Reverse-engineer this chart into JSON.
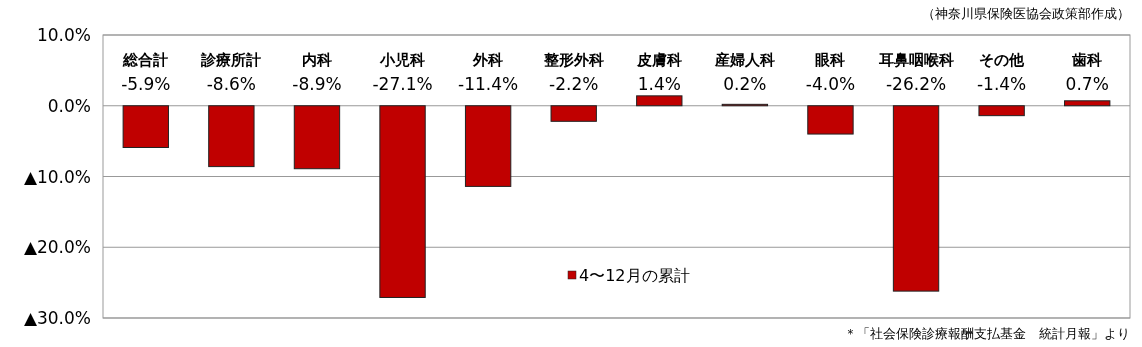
{
  "chart_data": {
    "type": "bar",
    "categories": [
      "総合計",
      "診療所計",
      "内科",
      "小児科",
      "外科",
      "整形外科",
      "皮膚科",
      "産婦人科",
      "眼科",
      "耳鼻咽喉科",
      "その他",
      "歯科"
    ],
    "series": [
      {
        "name": "4〜12月の累計",
        "color": "#c00000",
        "values": [
          -5.9,
          -8.6,
          -8.9,
          -27.1,
          -11.4,
          -2.2,
          1.4,
          0.2,
          -4.0,
          -26.2,
          -1.4,
          0.7
        ],
        "value_labels": [
          "-5.9%",
          "-8.6%",
          "-8.9%",
          "-27.1%",
          "-11.4%",
          "-2.2%",
          "1.4%",
          "0.2%",
          "-4.0%",
          "-26.2%",
          "-1.4%",
          "0.7%"
        ]
      }
    ],
    "ylim": [
      -30,
      10
    ],
    "yticks": [
      {
        "value": 10,
        "label": "10.0%"
      },
      {
        "value": 0,
        "label": "0.0%"
      },
      {
        "value": -10,
        "label": "▲10.0%"
      },
      {
        "value": -20,
        "label": "▲20.0%"
      },
      {
        "value": -30,
        "label": "▲30.0%"
      }
    ],
    "grid": "y",
    "legend": "bottom",
    "annotations": [
      "（神奈川県保険医協会政策部作成）",
      "＊「社会保険診療報酬支払基金　統計月報」より"
    ]
  }
}
